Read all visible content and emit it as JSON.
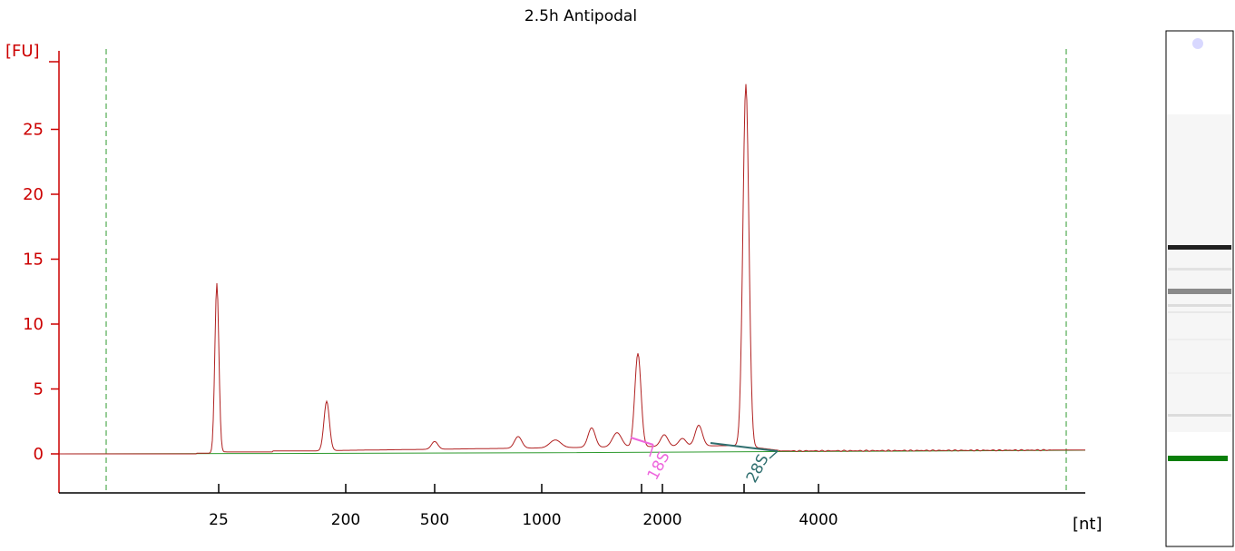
{
  "chart_data": {
    "type": "line",
    "title": "2.5h Antipodal",
    "ylabel": "[FU]",
    "xlabel": "[nt]",
    "ylim": [
      -3,
      30
    ],
    "yticks": [
      0,
      5,
      10,
      15,
      20,
      25
    ],
    "x_tick_labels": [
      "25",
      "200",
      "500",
      "1000",
      "2000",
      "4000"
    ],
    "x_scale": "nonlinear (ladder-calibrated)",
    "grid": false,
    "legend": "none",
    "colors": {
      "signal": "#b02020",
      "baseline": "#2e9a2e",
      "axis_y": "#cc0000",
      "marker_lines": "#2e9a2e",
      "label_18S": "#ee66dd",
      "label_28S": "#2f6f6f"
    },
    "series": [
      {
        "name": "",
        "x": [
          "25",
          "200",
          "500",
          "1000",
          "2000",
          "4000"
        ],
        "peaks_approx": [
          {
            "x": "25",
            "y": 13.0
          },
          {
            "x": "200",
            "y": 0.3
          },
          {
            "x": "500",
            "y": 0.9
          },
          {
            "x": "1000",
            "y": 0.8
          },
          {
            "x": "2000",
            "y": 1.3
          },
          {
            "x": "4000",
            "y": 0.2
          }
        ]
      }
    ],
    "annotations": [
      {
        "label": "18S",
        "x_between": [
          "1000",
          "2000"
        ]
      },
      {
        "label": "28S",
        "x_between": [
          "2000",
          "4000"
        ]
      }
    ]
  }
}
